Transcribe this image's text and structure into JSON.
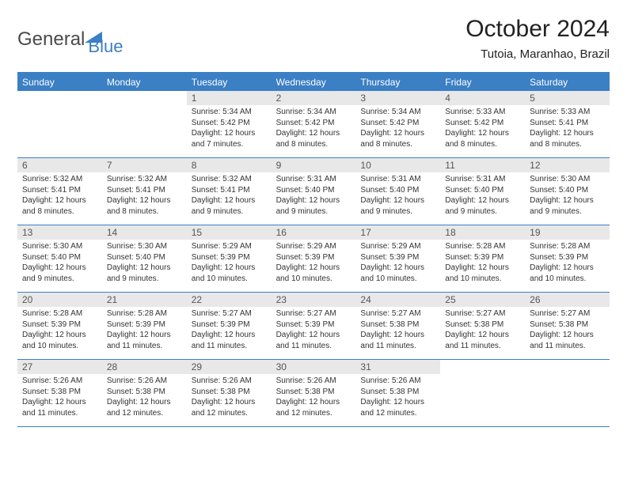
{
  "brand": {
    "name_a": "General",
    "name_b": "Blue"
  },
  "title": "October 2024",
  "location": "Tutoia, Maranhao, Brazil",
  "colors": {
    "accent": "#3b7fc4",
    "daynum_bg": "#e8e8e8",
    "text": "#333333",
    "title_text": "#222222",
    "bg": "#ffffff"
  },
  "day_headers": [
    "Sunday",
    "Monday",
    "Tuesday",
    "Wednesday",
    "Thursday",
    "Friday",
    "Saturday"
  ],
  "weeks": [
    [
      {
        "empty": true
      },
      {
        "empty": true
      },
      {
        "n": "1",
        "sr": "5:34 AM",
        "ss": "5:42 PM",
        "dl": "12 hours and 7 minutes."
      },
      {
        "n": "2",
        "sr": "5:34 AM",
        "ss": "5:42 PM",
        "dl": "12 hours and 8 minutes."
      },
      {
        "n": "3",
        "sr": "5:34 AM",
        "ss": "5:42 PM",
        "dl": "12 hours and 8 minutes."
      },
      {
        "n": "4",
        "sr": "5:33 AM",
        "ss": "5:42 PM",
        "dl": "12 hours and 8 minutes."
      },
      {
        "n": "5",
        "sr": "5:33 AM",
        "ss": "5:41 PM",
        "dl": "12 hours and 8 minutes."
      }
    ],
    [
      {
        "n": "6",
        "sr": "5:32 AM",
        "ss": "5:41 PM",
        "dl": "12 hours and 8 minutes."
      },
      {
        "n": "7",
        "sr": "5:32 AM",
        "ss": "5:41 PM",
        "dl": "12 hours and 8 minutes."
      },
      {
        "n": "8",
        "sr": "5:32 AM",
        "ss": "5:41 PM",
        "dl": "12 hours and 9 minutes."
      },
      {
        "n": "9",
        "sr": "5:31 AM",
        "ss": "5:40 PM",
        "dl": "12 hours and 9 minutes."
      },
      {
        "n": "10",
        "sr": "5:31 AM",
        "ss": "5:40 PM",
        "dl": "12 hours and 9 minutes."
      },
      {
        "n": "11",
        "sr": "5:31 AM",
        "ss": "5:40 PM",
        "dl": "12 hours and 9 minutes."
      },
      {
        "n": "12",
        "sr": "5:30 AM",
        "ss": "5:40 PM",
        "dl": "12 hours and 9 minutes."
      }
    ],
    [
      {
        "n": "13",
        "sr": "5:30 AM",
        "ss": "5:40 PM",
        "dl": "12 hours and 9 minutes."
      },
      {
        "n": "14",
        "sr": "5:30 AM",
        "ss": "5:40 PM",
        "dl": "12 hours and 9 minutes."
      },
      {
        "n": "15",
        "sr": "5:29 AM",
        "ss": "5:39 PM",
        "dl": "12 hours and 10 minutes."
      },
      {
        "n": "16",
        "sr": "5:29 AM",
        "ss": "5:39 PM",
        "dl": "12 hours and 10 minutes."
      },
      {
        "n": "17",
        "sr": "5:29 AM",
        "ss": "5:39 PM",
        "dl": "12 hours and 10 minutes."
      },
      {
        "n": "18",
        "sr": "5:28 AM",
        "ss": "5:39 PM",
        "dl": "12 hours and 10 minutes."
      },
      {
        "n": "19",
        "sr": "5:28 AM",
        "ss": "5:39 PM",
        "dl": "12 hours and 10 minutes."
      }
    ],
    [
      {
        "n": "20",
        "sr": "5:28 AM",
        "ss": "5:39 PM",
        "dl": "12 hours and 10 minutes."
      },
      {
        "n": "21",
        "sr": "5:28 AM",
        "ss": "5:39 PM",
        "dl": "12 hours and 11 minutes."
      },
      {
        "n": "22",
        "sr": "5:27 AM",
        "ss": "5:39 PM",
        "dl": "12 hours and 11 minutes."
      },
      {
        "n": "23",
        "sr": "5:27 AM",
        "ss": "5:39 PM",
        "dl": "12 hours and 11 minutes."
      },
      {
        "n": "24",
        "sr": "5:27 AM",
        "ss": "5:38 PM",
        "dl": "12 hours and 11 minutes."
      },
      {
        "n": "25",
        "sr": "5:27 AM",
        "ss": "5:38 PM",
        "dl": "12 hours and 11 minutes."
      },
      {
        "n": "26",
        "sr": "5:27 AM",
        "ss": "5:38 PM",
        "dl": "12 hours and 11 minutes."
      }
    ],
    [
      {
        "n": "27",
        "sr": "5:26 AM",
        "ss": "5:38 PM",
        "dl": "12 hours and 11 minutes."
      },
      {
        "n": "28",
        "sr": "5:26 AM",
        "ss": "5:38 PM",
        "dl": "12 hours and 12 minutes."
      },
      {
        "n": "29",
        "sr": "5:26 AM",
        "ss": "5:38 PM",
        "dl": "12 hours and 12 minutes."
      },
      {
        "n": "30",
        "sr": "5:26 AM",
        "ss": "5:38 PM",
        "dl": "12 hours and 12 minutes."
      },
      {
        "n": "31",
        "sr": "5:26 AM",
        "ss": "5:38 PM",
        "dl": "12 hours and 12 minutes."
      },
      {
        "empty": true
      },
      {
        "empty": true
      }
    ]
  ],
  "labels": {
    "sunrise": "Sunrise:",
    "sunset": "Sunset:",
    "daylight": "Daylight:"
  }
}
